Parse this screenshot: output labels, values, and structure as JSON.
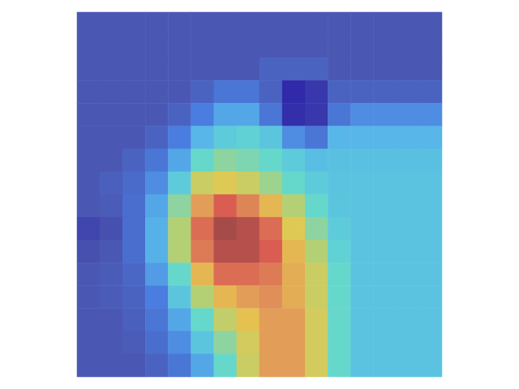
{
  "chart_data": {
    "type": "heatmap",
    "tick_labels": false,
    "clim": [
      0,
      1
    ],
    "cells": [
      [
        0.12,
        0.12,
        0.12,
        0.12,
        0.12,
        0.12,
        0.12,
        0.12,
        0.12,
        0.12,
        0.12,
        0.12,
        0.12,
        0.12,
        0.12,
        0.12
      ],
      [
        0.12,
        0.12,
        0.12,
        0.12,
        0.12,
        0.12,
        0.12,
        0.12,
        0.12,
        0.12,
        0.12,
        0.12,
        0.12,
        0.12,
        0.12,
        0.12
      ],
      [
        0.12,
        0.12,
        0.12,
        0.12,
        0.12,
        0.12,
        0.12,
        0.12,
        0.15,
        0.15,
        0.15,
        0.12,
        0.12,
        0.12,
        0.12,
        0.12
      ],
      [
        0.12,
        0.12,
        0.12,
        0.12,
        0.12,
        0.15,
        0.2,
        0.2,
        0.15,
        0.02,
        0.05,
        0.15,
        0.15,
        0.15,
        0.15,
        0.15
      ],
      [
        0.12,
        0.12,
        0.12,
        0.12,
        0.15,
        0.22,
        0.3,
        0.3,
        0.2,
        0.03,
        0.05,
        0.2,
        0.25,
        0.25,
        0.25,
        0.25
      ],
      [
        0.12,
        0.12,
        0.12,
        0.15,
        0.22,
        0.33,
        0.4,
        0.42,
        0.38,
        0.25,
        0.2,
        0.33,
        0.33,
        0.33,
        0.33,
        0.33
      ],
      [
        0.12,
        0.12,
        0.15,
        0.2,
        0.3,
        0.45,
        0.5,
        0.48,
        0.45,
        0.4,
        0.35,
        0.36,
        0.36,
        0.36,
        0.36,
        0.36
      ],
      [
        0.12,
        0.14,
        0.17,
        0.25,
        0.4,
        0.6,
        0.65,
        0.6,
        0.52,
        0.45,
        0.4,
        0.37,
        0.37,
        0.37,
        0.37,
        0.37
      ],
      [
        0.12,
        0.13,
        0.18,
        0.3,
        0.5,
        0.75,
        0.88,
        0.8,
        0.7,
        0.55,
        0.45,
        0.38,
        0.37,
        0.37,
        0.37,
        0.37
      ],
      [
        0.08,
        0.1,
        0.18,
        0.32,
        0.55,
        0.85,
        0.98,
        0.95,
        0.85,
        0.65,
        0.5,
        0.4,
        0.37,
        0.37,
        0.37,
        0.37
      ],
      [
        0.1,
        0.12,
        0.18,
        0.32,
        0.55,
        0.82,
        0.95,
        0.95,
        0.88,
        0.7,
        0.55,
        0.42,
        0.37,
        0.37,
        0.37,
        0.37
      ],
      [
        0.12,
        0.13,
        0.16,
        0.28,
        0.45,
        0.7,
        0.85,
        0.85,
        0.82,
        0.72,
        0.6,
        0.45,
        0.37,
        0.37,
        0.37,
        0.37
      ],
      [
        0.12,
        0.13,
        0.15,
        0.22,
        0.38,
        0.55,
        0.7,
        0.75,
        0.78,
        0.72,
        0.6,
        0.45,
        0.37,
        0.37,
        0.37,
        0.37
      ],
      [
        0.12,
        0.12,
        0.14,
        0.2,
        0.3,
        0.45,
        0.58,
        0.68,
        0.75,
        0.75,
        0.62,
        0.45,
        0.37,
        0.37,
        0.37,
        0.37
      ],
      [
        0.12,
        0.12,
        0.13,
        0.18,
        0.25,
        0.38,
        0.5,
        0.62,
        0.75,
        0.75,
        0.62,
        0.45,
        0.37,
        0.37,
        0.37,
        0.37
      ],
      [
        0.12,
        0.12,
        0.12,
        0.15,
        0.2,
        0.3,
        0.45,
        0.6,
        0.75,
        0.75,
        0.62,
        0.45,
        0.37,
        0.37,
        0.37,
        0.37
      ]
    ]
  }
}
